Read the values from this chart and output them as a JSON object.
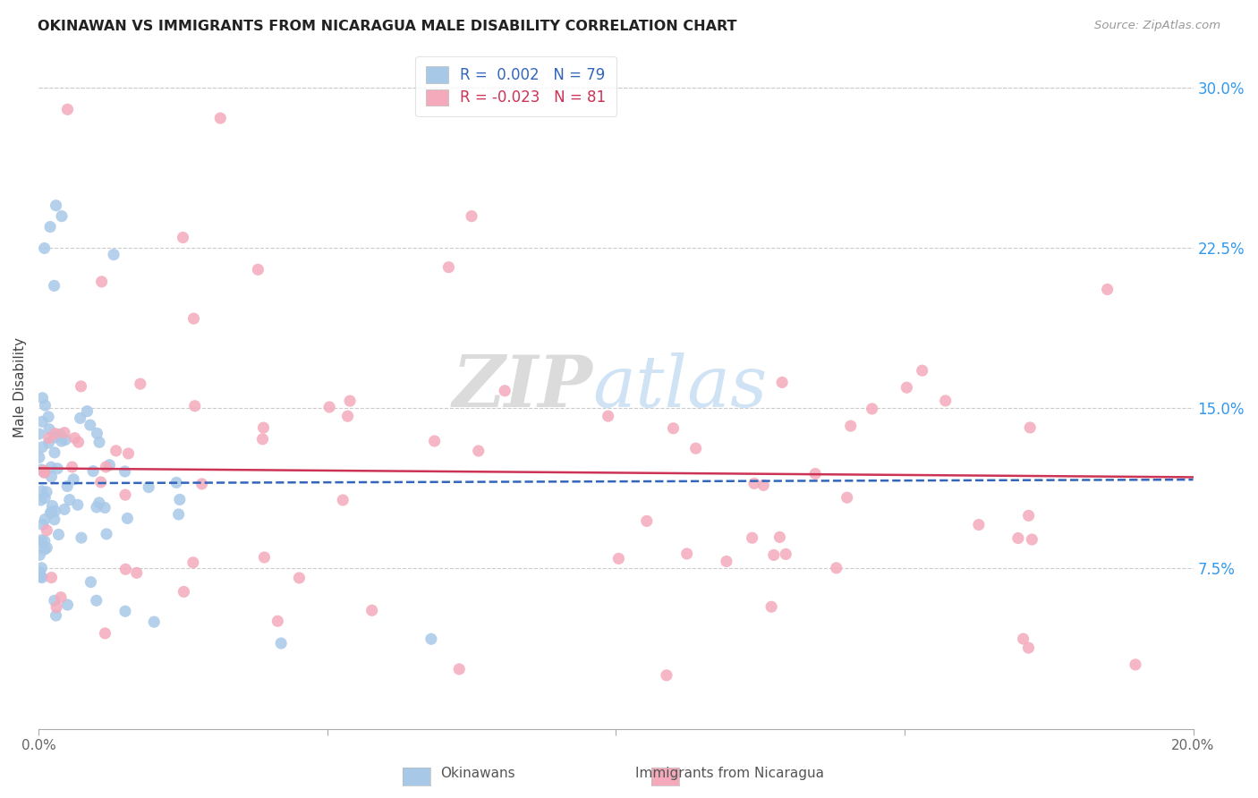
{
  "title": "OKINAWAN VS IMMIGRANTS FROM NICARAGUA MALE DISABILITY CORRELATION CHART",
  "source": "Source: ZipAtlas.com",
  "ylabel": "Male Disability",
  "xlim": [
    0.0,
    0.2
  ],
  "ylim": [
    0.0,
    0.32
  ],
  "color_okinawan": "#a8c8e8",
  "color_nicaragua": "#f4aabb",
  "trendline_color_okinawan": "#3366bb",
  "trendline_color_nicaragua": "#cc3355",
  "watermark_zip": "ZIP",
  "watermark_atlas": "atlas",
  "ytick_vals": [
    0.075,
    0.15,
    0.225,
    0.3
  ],
  "ytick_labels": [
    "7.5%",
    "15.0%",
    "22.5%",
    "30.0%"
  ]
}
